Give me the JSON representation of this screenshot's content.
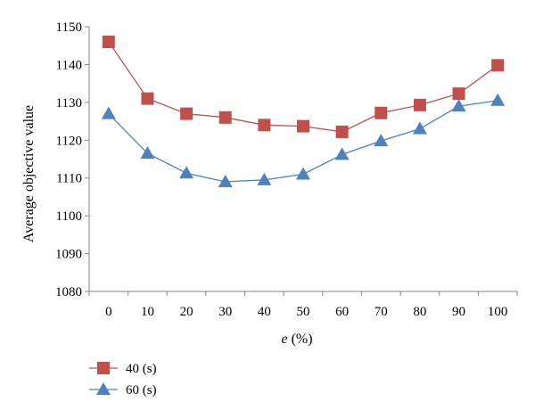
{
  "chart_data": {
    "type": "line",
    "title": "",
    "xlabel_var": "e",
    "xlabel_rest": " (%)",
    "ylabel": "Average objective value",
    "categories": [
      "0",
      "10",
      "20",
      "30",
      "40",
      "50",
      "60",
      "70",
      "80",
      "90",
      "100"
    ],
    "yticks": [
      "1080",
      "1090",
      "1100",
      "1110",
      "1120",
      "1130",
      "1140",
      "1150"
    ],
    "ylim": [
      1080,
      1150
    ],
    "grid": false,
    "legend_position": "bottom-left",
    "series": [
      {
        "name": "40 (s)",
        "marker": "square",
        "color": "#c0504d",
        "values": [
          1146,
          1131,
          1127,
          1126,
          1124,
          1123.7,
          1122.2,
          1127.2,
          1129.3,
          1132.3,
          1139.8
        ]
      },
      {
        "name": "60 (s)",
        "marker": "triangle",
        "color": "#4f81bd",
        "values": [
          1127,
          1116.5,
          1111.3,
          1109,
          1109.5,
          1111,
          1116.2,
          1119.8,
          1123,
          1129,
          1130.5
        ]
      }
    ]
  }
}
